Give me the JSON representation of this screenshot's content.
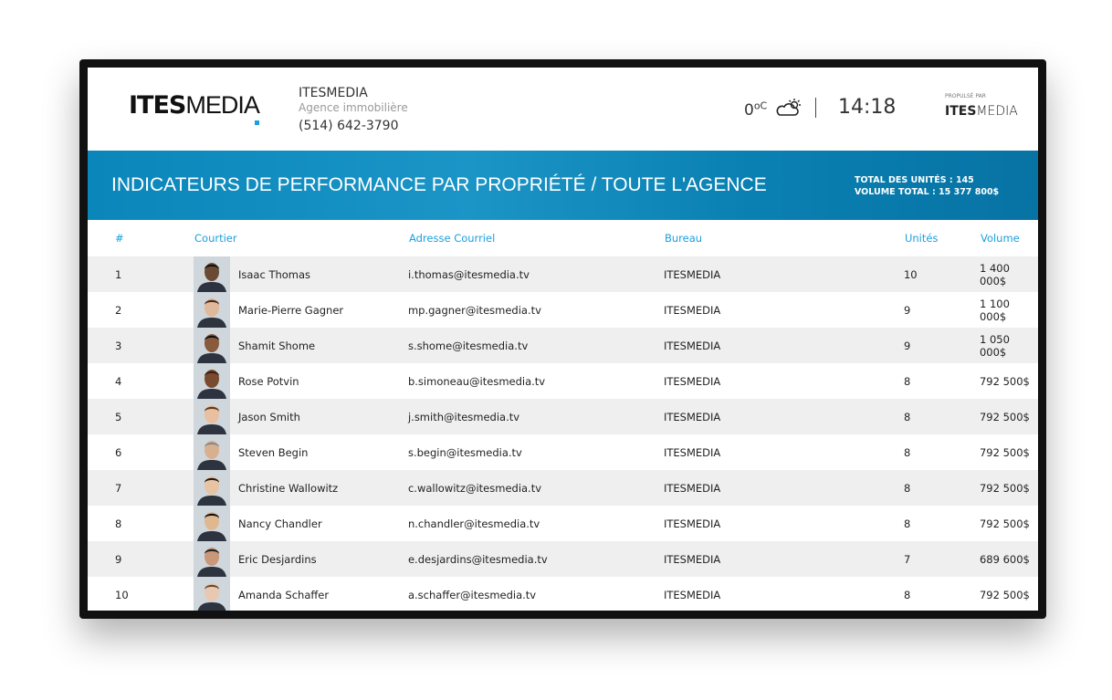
{
  "header": {
    "logo": "ITESMEDIA",
    "agency_name": "ITESMEDIA",
    "agency_type": "Agence immobilière",
    "phone": "(514) 642-3790",
    "temperature": "0",
    "temp_unit": "oC",
    "weather_icon": "partly-cloudy-icon",
    "time": "14:18",
    "powered_by": "PROPULSÉ PAR",
    "powered_logo": "ITESMEDIA"
  },
  "banner": {
    "title": "INDICATEURS DE PERFORMANCE PAR PROPRIÉTÉ / TOUTE L'AGENCE",
    "total_units": "TOTAL DES UNITÉS : 145",
    "total_volume": "VOLUME TOTAL : 15 377 800$"
  },
  "table": {
    "columns": [
      "#",
      "Courtier",
      "Adresse Courriel",
      "Bureau",
      "Unités",
      "Volume"
    ],
    "rows": [
      {
        "rank": "1",
        "name": "Isaac Thomas",
        "email": "i.thomas@itesmedia.tv",
        "office": "ITESMEDIA",
        "units": "10",
        "volume": "1 400 000$"
      },
      {
        "rank": "2",
        "name": "Marie-Pierre Gagner",
        "email": "mp.gagner@itesmedia.tv",
        "office": "ITESMEDIA",
        "units": "9",
        "volume": "1 100 000$"
      },
      {
        "rank": "3",
        "name": "Shamit Shome",
        "email": "s.shome@itesmedia.tv",
        "office": "ITESMEDIA",
        "units": "9",
        "volume": "1 050 000$"
      },
      {
        "rank": "4",
        "name": "Rose Potvin",
        "email": "b.simoneau@itesmedia.tv",
        "office": "ITESMEDIA",
        "units": "8",
        "volume": "792 500$"
      },
      {
        "rank": "5",
        "name": "Jason Smith",
        "email": "j.smith@itesmedia.tv",
        "office": "ITESMEDIA",
        "units": "8",
        "volume": "792 500$"
      },
      {
        "rank": "6",
        "name": "Steven Begin",
        "email": "s.begin@itesmedia.tv",
        "office": "ITESMEDIA",
        "units": "8",
        "volume": "792 500$"
      },
      {
        "rank": "7",
        "name": "Christine Wallowitz",
        "email": "c.wallowitz@itesmedia.tv",
        "office": "ITESMEDIA",
        "units": "8",
        "volume": "792 500$"
      },
      {
        "rank": "8",
        "name": "Nancy Chandler",
        "email": "n.chandler@itesmedia.tv",
        "office": "ITESMEDIA",
        "units": "8",
        "volume": "792 500$"
      },
      {
        "rank": "9",
        "name": "Eric Desjardins",
        "email": "e.desjardins@itesmedia.tv",
        "office": "ITESMEDIA",
        "units": "7",
        "volume": "689 600$"
      },
      {
        "rank": "10",
        "name": "Amanda Schaffer",
        "email": "a.schaffer@itesmedia.tv",
        "office": "ITESMEDIA",
        "units": "8",
        "volume": "792 500$"
      }
    ]
  },
  "colors": {
    "accent": "#1a9fdf",
    "banner": "#0a86ba"
  }
}
